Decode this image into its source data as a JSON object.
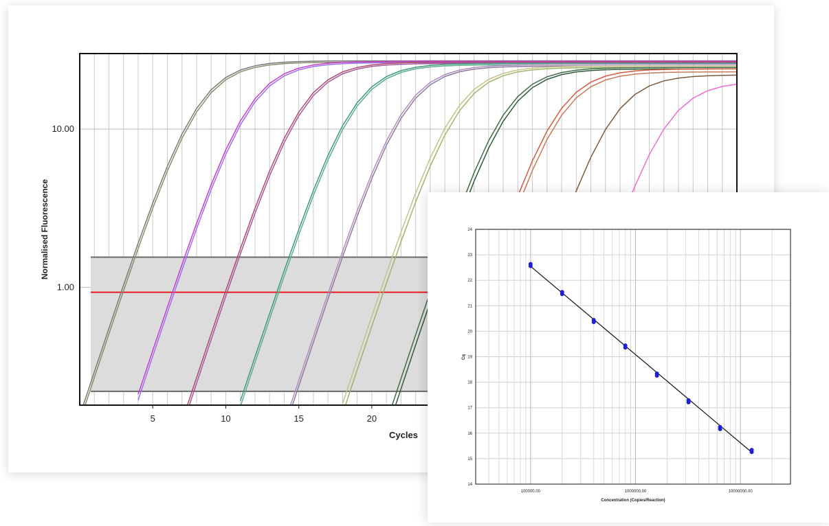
{
  "colors": {
    "threshold": "#e8191c",
    "band_fill": "#dcdcdc",
    "band_edge": "#6a6a6a",
    "std_point": "#1f1fd6",
    "fit_line": "#111111"
  },
  "amplification_plot": {
    "xlabel": "Cycles",
    "ylabel": "Normalised Fluorescence",
    "x_ticks": [
      "5",
      "10",
      "15",
      "20"
    ],
    "y_ticks": [
      "1.00",
      "10.00"
    ]
  },
  "standard_curve": {
    "xlabel": "Concentration (Copies/Reaction)",
    "ylabel": "Cq",
    "x_ticks": [
      "100000.00",
      "1000000.00",
      "10000000.00"
    ],
    "y_ticks": [
      "14",
      "15",
      "16",
      "17",
      "18",
      "19",
      "20",
      "21",
      "22",
      "23",
      "24"
    ]
  },
  "chart_data": [
    {
      "type": "line",
      "xlabel": "Cycles",
      "ylabel": "Normalised Fluorescence",
      "y_scale": "log",
      "xlim": [
        0,
        45
      ],
      "ylim": [
        0.18,
        30
      ],
      "x_ticks": [
        5,
        10,
        15,
        20
      ],
      "y_ticks": [
        1.0,
        10.0
      ],
      "grid": true,
      "threshold": 0.93,
      "threshold_band": [
        0.22,
        1.55
      ],
      "series": [
        {
          "midpoint": 8.0,
          "plateau": 27,
          "color": "#7a7a7a"
        },
        {
          "midpoint": 8.1,
          "plateau": 26.5,
          "color": "#8f8a6a"
        },
        {
          "midpoint": 11.5,
          "plateau": 26.8,
          "color": "#c43ec9"
        },
        {
          "midpoint": 11.6,
          "plateau": 26.3,
          "color": "#9b6ff0"
        },
        {
          "midpoint": 15.1,
          "plateau": 26.5,
          "color": "#b5476e"
        },
        {
          "midpoint": 15.2,
          "plateau": 26.0,
          "color": "#a05a9a"
        },
        {
          "midpoint": 18.6,
          "plateau": 26.0,
          "color": "#3e9a78"
        },
        {
          "midpoint": 18.7,
          "plateau": 25.5,
          "color": "#5fae8e"
        },
        {
          "midpoint": 22.1,
          "plateau": 25.5,
          "color": "#b18cc0"
        },
        {
          "midpoint": 22.2,
          "plateau": 25.0,
          "color": "#8e7a9e"
        },
        {
          "midpoint": 25.6,
          "plateau": 25.0,
          "color": "#c8c08a"
        },
        {
          "midpoint": 25.8,
          "plateau": 24.5,
          "color": "#9db56a"
        },
        {
          "midpoint": 29.0,
          "plateau": 24.5,
          "color": "#3f6b45"
        },
        {
          "midpoint": 29.2,
          "plateau": 24.0,
          "color": "#2f5a3a"
        },
        {
          "midpoint": 32.6,
          "plateau": 24.0,
          "color": "#d25a3e"
        },
        {
          "midpoint": 32.8,
          "plateau": 23.0,
          "color": "#c77a55"
        },
        {
          "midpoint": 36.3,
          "plateau": 22.0,
          "color": "#7a5a3e"
        },
        {
          "midpoint": 40.0,
          "plateau": 20.0,
          "color": "#f06ad6"
        }
      ]
    },
    {
      "type": "scatter",
      "xlabel": "Concentration (Copies/Reaction)",
      "ylabel": "Cq",
      "x_scale": "log",
      "xlim": [
        30000,
        30000000
      ],
      "ylim": [
        14,
        24
      ],
      "grid": true,
      "x": [
        100000,
        200000,
        400000,
        800000,
        1600000,
        3200000,
        6400000,
        12800000
      ],
      "y": [
        22.6,
        21.5,
        20.4,
        19.4,
        18.3,
        17.25,
        16.2,
        15.3
      ],
      "fit_line": {
        "x": [
          100000,
          12800000
        ],
        "y": [
          22.55,
          15.25
        ]
      }
    }
  ]
}
